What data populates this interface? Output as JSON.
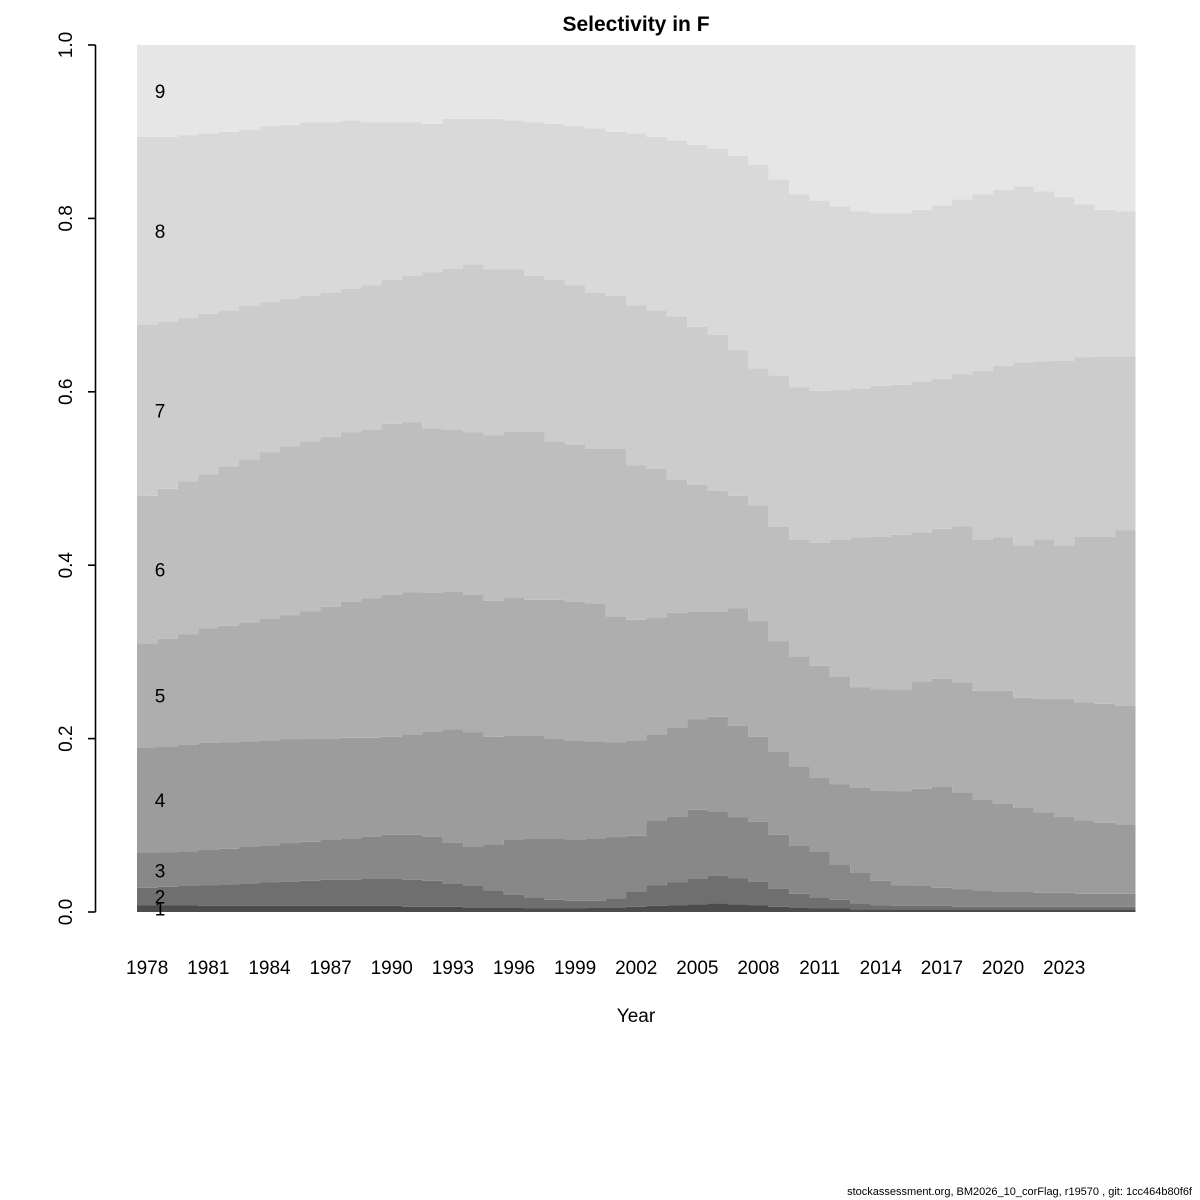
{
  "title": "Selectivity in F",
  "xlabel": "Year",
  "footer": "stockassessment.org, BM2026_10_corFlag, r19570 , git: 1cc464b80f6f",
  "chart_data": {
    "type": "area",
    "stacked": true,
    "title": "Selectivity in F",
    "xlabel": "Year",
    "ylabel": "",
    "ylim": [
      0.0,
      1.0
    ],
    "x_range": [
      1978,
      2026
    ],
    "grid": false,
    "legend": "age labels drawn inside bands at left edge",
    "age_band_labels": [
      "1",
      "2",
      "3",
      "4",
      "5",
      "6",
      "7",
      "8",
      "9"
    ],
    "band_colors": [
      "#4C4C4C",
      "#6F6F6F",
      "#888888",
      "#9C9C9C",
      "#AEAEAE",
      "#BEBEBE",
      "#CCCCCC",
      "#D9D9D9",
      "#E6E6E6"
    ],
    "y_ticks": [
      "0.0",
      "0.2",
      "0.4",
      "0.6",
      "0.8",
      "1.0"
    ],
    "x_tick_years": [
      1978,
      1981,
      1984,
      1987,
      1990,
      1993,
      1996,
      1999,
      2002,
      2005,
      2008,
      2011,
      2014,
      2017,
      2020,
      2023
    ],
    "note": "cumulative_upper_bounds gives, per year 1978..2026, the stacked cumulative selectivity at the top of each age band 1..8; band 9 tops out at 1.0",
    "cumulative_upper_bounds": {
      "age1": [
        0.008,
        0.008,
        0.008,
        0.007,
        0.007,
        0.007,
        0.007,
        0.007,
        0.007,
        0.007,
        0.007,
        0.007,
        0.007,
        0.006,
        0.006,
        0.006,
        0.005,
        0.005,
        0.005,
        0.004,
        0.004,
        0.004,
        0.005,
        0.005,
        0.006,
        0.007,
        0.008,
        0.009,
        0.01,
        0.009,
        0.008,
        0.006,
        0.005,
        0.004,
        0.004,
        0.003,
        0.003,
        0.003,
        0.003,
        0.003,
        0.003,
        0.003,
        0.003,
        0.003,
        0.003,
        0.003,
        0.003,
        0.003,
        0.003
      ],
      "age2": [
        0.028,
        0.029,
        0.03,
        0.031,
        0.032,
        0.033,
        0.034,
        0.035,
        0.036,
        0.037,
        0.037,
        0.038,
        0.038,
        0.037,
        0.036,
        0.033,
        0.03,
        0.025,
        0.02,
        0.017,
        0.014,
        0.013,
        0.013,
        0.015,
        0.024,
        0.031,
        0.034,
        0.038,
        0.042,
        0.039,
        0.035,
        0.027,
        0.021,
        0.017,
        0.014,
        0.01,
        0.008,
        0.007,
        0.007,
        0.007,
        0.006,
        0.006,
        0.006,
        0.006,
        0.006,
        0.006,
        0.006,
        0.006,
        0.006
      ],
      "age3": [
        0.068,
        0.069,
        0.07,
        0.072,
        0.073,
        0.075,
        0.077,
        0.079,
        0.081,
        0.083,
        0.085,
        0.087,
        0.089,
        0.089,
        0.087,
        0.08,
        0.075,
        0.078,
        0.083,
        0.085,
        0.085,
        0.083,
        0.085,
        0.086,
        0.088,
        0.105,
        0.11,
        0.118,
        0.116,
        0.109,
        0.104,
        0.089,
        0.077,
        0.07,
        0.055,
        0.045,
        0.036,
        0.031,
        0.03,
        0.028,
        0.026,
        0.025,
        0.024,
        0.023,
        0.022,
        0.022,
        0.021,
        0.021,
        0.021
      ],
      "age4": [
        0.19,
        0.191,
        0.193,
        0.195,
        0.196,
        0.197,
        0.198,
        0.199,
        0.2,
        0.2,
        0.201,
        0.201,
        0.202,
        0.205,
        0.208,
        0.211,
        0.207,
        0.202,
        0.203,
        0.203,
        0.2,
        0.198,
        0.197,
        0.196,
        0.198,
        0.205,
        0.213,
        0.222,
        0.225,
        0.215,
        0.202,
        0.185,
        0.168,
        0.155,
        0.147,
        0.143,
        0.14,
        0.139,
        0.142,
        0.145,
        0.138,
        0.13,
        0.125,
        0.12,
        0.115,
        0.11,
        0.106,
        0.103,
        0.101
      ],
      "age5": [
        0.31,
        0.315,
        0.32,
        0.327,
        0.33,
        0.334,
        0.338,
        0.342,
        0.347,
        0.352,
        0.358,
        0.362,
        0.366,
        0.369,
        0.368,
        0.37,
        0.366,
        0.359,
        0.363,
        0.36,
        0.36,
        0.358,
        0.356,
        0.341,
        0.337,
        0.34,
        0.345,
        0.346,
        0.346,
        0.35,
        0.335,
        0.312,
        0.295,
        0.284,
        0.271,
        0.259,
        0.257,
        0.256,
        0.266,
        0.269,
        0.265,
        0.255,
        0.255,
        0.247,
        0.246,
        0.246,
        0.242,
        0.24,
        0.238
      ],
      "age6": [
        0.48,
        0.488,
        0.497,
        0.505,
        0.514,
        0.522,
        0.53,
        0.537,
        0.543,
        0.548,
        0.553,
        0.556,
        0.563,
        0.565,
        0.558,
        0.556,
        0.553,
        0.55,
        0.554,
        0.554,
        0.543,
        0.539,
        0.534,
        0.534,
        0.515,
        0.511,
        0.499,
        0.493,
        0.486,
        0.48,
        0.469,
        0.444,
        0.429,
        0.426,
        0.429,
        0.432,
        0.433,
        0.435,
        0.438,
        0.442,
        0.445,
        0.429,
        0.432,
        0.423,
        0.43,
        0.423,
        0.433,
        0.433,
        0.44
      ],
      "age7": [
        0.677,
        0.681,
        0.685,
        0.69,
        0.694,
        0.699,
        0.703,
        0.707,
        0.711,
        0.714,
        0.719,
        0.723,
        0.729,
        0.734,
        0.738,
        0.742,
        0.747,
        0.741,
        0.741,
        0.734,
        0.729,
        0.723,
        0.714,
        0.711,
        0.7,
        0.694,
        0.687,
        0.675,
        0.666,
        0.648,
        0.627,
        0.619,
        0.605,
        0.601,
        0.602,
        0.604,
        0.607,
        0.608,
        0.612,
        0.615,
        0.62,
        0.624,
        0.63,
        0.634,
        0.635,
        0.636,
        0.64,
        0.641,
        0.641
      ],
      "age8": [
        0.894,
        0.894,
        0.896,
        0.898,
        0.9,
        0.902,
        0.906,
        0.908,
        0.911,
        0.911,
        0.913,
        0.911,
        0.911,
        0.911,
        0.909,
        0.915,
        0.915,
        0.915,
        0.913,
        0.911,
        0.909,
        0.906,
        0.904,
        0.9,
        0.898,
        0.894,
        0.89,
        0.885,
        0.88,
        0.872,
        0.862,
        0.845,
        0.828,
        0.82,
        0.814,
        0.808,
        0.806,
        0.806,
        0.81,
        0.815,
        0.822,
        0.828,
        0.833,
        0.837,
        0.831,
        0.825,
        0.816,
        0.81,
        0.808
      ]
    }
  }
}
